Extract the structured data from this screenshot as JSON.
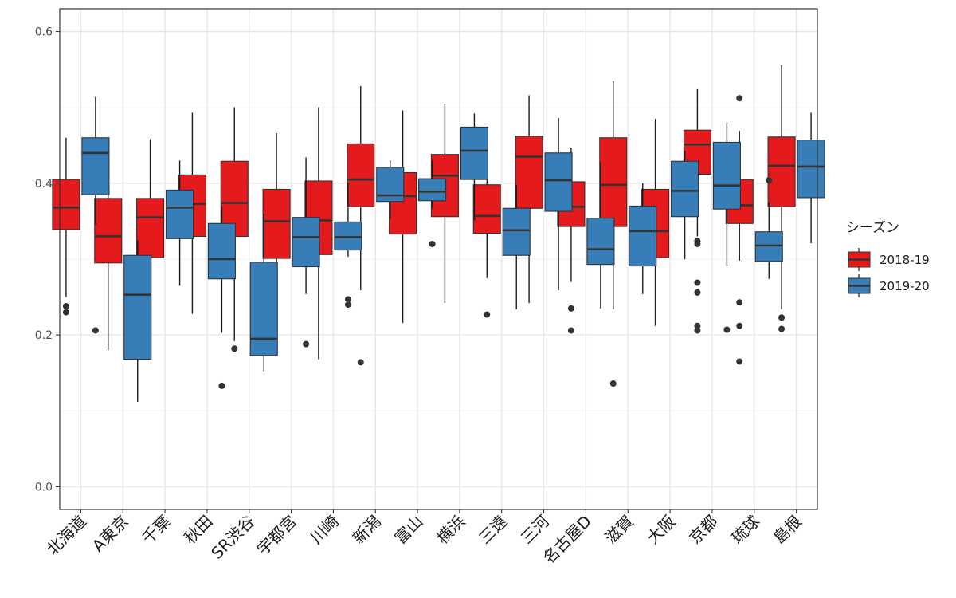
{
  "chart_data": {
    "type": "boxplot",
    "title": "",
    "xlabel": "",
    "ylabel": "",
    "ylim": [
      -0.03,
      0.63
    ],
    "yticks": [
      0.0,
      0.2,
      0.4,
      0.6
    ],
    "ytick_labels": [
      "0.0",
      "0.2",
      "0.4",
      "0.6"
    ],
    "grid": true,
    "legend": {
      "title": "シーズン",
      "placement": "right",
      "entries": [
        "2018-19",
        "2019-20"
      ]
    },
    "colors": {
      "2018-19": "#e41a1c",
      "2019-20": "#377eb8"
    },
    "categories": [
      "北海道",
      "A東京",
      "千葉",
      "秋田",
      "SR渋谷",
      "宇都宮",
      "川崎",
      "新潟",
      "富山",
      "横浜",
      "三遠",
      "三河",
      "名古屋D",
      "滋賀",
      "大阪",
      "京都",
      "琉球",
      "島根"
    ],
    "series": [
      {
        "name": "2018-19",
        "boxes": [
          {
            "whisker_low": 0.25,
            "q1": 0.339,
            "median": 0.368,
            "q3": 0.405,
            "whisker_high": 0.46,
            "outliers": [
              0.238,
              0.23
            ]
          },
          {
            "whisker_low": 0.18,
            "q1": 0.295,
            "median": 0.33,
            "q3": 0.38,
            "whisker_high": 0.443,
            "outliers": []
          },
          {
            "whisker_low": 0.201,
            "q1": 0.302,
            "median": 0.355,
            "q3": 0.38,
            "whisker_high": 0.458,
            "outliers": []
          },
          {
            "whisker_low": 0.228,
            "q1": 0.33,
            "median": 0.373,
            "q3": 0.411,
            "whisker_high": 0.493,
            "outliers": []
          },
          {
            "whisker_low": 0.192,
            "q1": 0.33,
            "median": 0.374,
            "q3": 0.429,
            "whisker_high": 0.5,
            "outliers": [
              0.182
            ]
          },
          {
            "whisker_low": 0.2,
            "q1": 0.301,
            "median": 0.35,
            "q3": 0.392,
            "whisker_high": 0.466,
            "outliers": []
          },
          {
            "whisker_low": 0.168,
            "q1": 0.306,
            "median": 0.351,
            "q3": 0.403,
            "whisker_high": 0.5,
            "outliers": []
          },
          {
            "whisker_low": 0.259,
            "q1": 0.369,
            "median": 0.405,
            "q3": 0.452,
            "whisker_high": 0.528,
            "outliers": [
              0.164
            ]
          },
          {
            "whisker_low": 0.216,
            "q1": 0.333,
            "median": 0.383,
            "q3": 0.414,
            "whisker_high": 0.496,
            "outliers": []
          },
          {
            "whisker_low": 0.242,
            "q1": 0.356,
            "median": 0.41,
            "q3": 0.438,
            "whisker_high": 0.505,
            "outliers": []
          },
          {
            "whisker_low": 0.275,
            "q1": 0.334,
            "median": 0.357,
            "q3": 0.398,
            "whisker_high": 0.467,
            "outliers": [
              0.227
            ]
          },
          {
            "whisker_low": 0.242,
            "q1": 0.367,
            "median": 0.435,
            "q3": 0.462,
            "whisker_high": 0.516,
            "outliers": []
          },
          {
            "whisker_low": 0.27,
            "q1": 0.343,
            "median": 0.369,
            "q3": 0.402,
            "whisker_high": 0.447,
            "outliers": [
              0.235,
              0.206
            ]
          },
          {
            "whisker_low": 0.234,
            "q1": 0.343,
            "median": 0.398,
            "q3": 0.46,
            "whisker_high": 0.535,
            "outliers": [
              0.136
            ]
          },
          {
            "whisker_low": 0.212,
            "q1": 0.302,
            "median": 0.337,
            "q3": 0.392,
            "whisker_high": 0.485,
            "outliers": []
          },
          {
            "whisker_low": 0.33,
            "q1": 0.412,
            "median": 0.451,
            "q3": 0.47,
            "whisker_high": 0.524,
            "outliers": [
              0.324,
              0.32,
              0.269,
              0.256,
              0.212,
              0.206
            ]
          },
          {
            "whisker_low": 0.298,
            "q1": 0.347,
            "median": 0.371,
            "q3": 0.405,
            "whisker_high": 0.469,
            "outliers": [
              0.512,
              0.243,
              0.212,
              0.165
            ]
          },
          {
            "whisker_low": 0.234,
            "q1": 0.369,
            "median": 0.423,
            "q3": 0.461,
            "whisker_high": 0.556,
            "outliers": [
              0.223,
              0.208
            ]
          }
        ]
      },
      {
        "name": "2019-20",
        "boxes": [
          {
            "whisker_low": 0.346,
            "q1": 0.385,
            "median": 0.44,
            "q3": 0.46,
            "whisker_high": 0.514,
            "outliers": [
              0.206
            ]
          },
          {
            "whisker_low": 0.112,
            "q1": 0.168,
            "median": 0.253,
            "q3": 0.305,
            "whisker_high": 0.325,
            "outliers": []
          },
          {
            "whisker_low": 0.265,
            "q1": 0.327,
            "median": 0.368,
            "q3": 0.391,
            "whisker_high": 0.43,
            "outliers": []
          },
          {
            "whisker_low": 0.203,
            "q1": 0.274,
            "median": 0.3,
            "q3": 0.347,
            "whisker_high": 0.37,
            "outliers": [
              0.133
            ]
          },
          {
            "whisker_low": 0.152,
            "q1": 0.173,
            "median": 0.195,
            "q3": 0.296,
            "whisker_high": 0.36,
            "outliers": []
          },
          {
            "whisker_low": 0.254,
            "q1": 0.29,
            "median": 0.329,
            "q3": 0.355,
            "whisker_high": 0.434,
            "outliers": [
              0.188
            ]
          },
          {
            "whisker_low": 0.303,
            "q1": 0.312,
            "median": 0.329,
            "q3": 0.349,
            "whisker_high": 0.401,
            "outliers": [
              0.247,
              0.24
            ]
          },
          {
            "whisker_low": 0.353,
            "q1": 0.376,
            "median": 0.384,
            "q3": 0.421,
            "whisker_high": 0.43,
            "outliers": []
          },
          {
            "whisker_low": 0.367,
            "q1": 0.377,
            "median": 0.389,
            "q3": 0.406,
            "whisker_high": 0.43,
            "outliers": [
              0.32
            ]
          },
          {
            "whisker_low": 0.351,
            "q1": 0.405,
            "median": 0.443,
            "q3": 0.474,
            "whisker_high": 0.492,
            "outliers": []
          },
          {
            "whisker_low": 0.234,
            "q1": 0.305,
            "median": 0.338,
            "q3": 0.367,
            "whisker_high": 0.398,
            "outliers": []
          },
          {
            "whisker_low": 0.259,
            "q1": 0.363,
            "median": 0.404,
            "q3": 0.44,
            "whisker_high": 0.486,
            "outliers": []
          },
          {
            "whisker_low": 0.235,
            "q1": 0.293,
            "median": 0.313,
            "q3": 0.354,
            "whisker_high": 0.428,
            "outliers": []
          },
          {
            "whisker_low": 0.254,
            "q1": 0.291,
            "median": 0.337,
            "q3": 0.37,
            "whisker_high": 0.4,
            "outliers": []
          },
          {
            "whisker_low": 0.3,
            "q1": 0.356,
            "median": 0.39,
            "q3": 0.429,
            "whisker_high": 0.443,
            "outliers": []
          },
          {
            "whisker_low": 0.291,
            "q1": 0.366,
            "median": 0.397,
            "q3": 0.454,
            "whisker_high": 0.48,
            "outliers": [
              0.207
            ]
          },
          {
            "whisker_low": 0.274,
            "q1": 0.297,
            "median": 0.318,
            "q3": 0.336,
            "whisker_high": 0.375,
            "outliers": [
              0.404
            ]
          },
          {
            "whisker_low": 0.321,
            "q1": 0.381,
            "median": 0.422,
            "q3": 0.457,
            "whisker_high": 0.493,
            "outliers": []
          }
        ]
      }
    ]
  }
}
